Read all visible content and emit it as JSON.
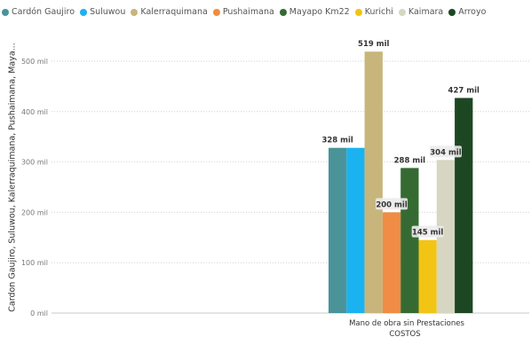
{
  "chart_data": {
    "type": "bar",
    "categories": [
      "Mano de obra sin Prestaciones"
    ],
    "xlabel": "COSTOS",
    "ylabel": "Cardon Gaujiro, Suluwou, Kalerraquimana, Pushaimana, Maya...",
    "ylim": [
      0,
      560
    ],
    "yticks": [
      0,
      100,
      200,
      300,
      400,
      500
    ],
    "ytick_labels": [
      "0 mil",
      "100 mil",
      "200 mil",
      "300 mil",
      "400 mil",
      "500 mil"
    ],
    "legend_position": "top",
    "grid": true,
    "series": [
      {
        "name": "Cardón Gaujiro",
        "values": [
          328
        ],
        "label": "328 mil",
        "color": "#4a9499"
      },
      {
        "name": "Suluwou",
        "values": [
          328
        ],
        "label": "",
        "color": "#1ab2f0"
      },
      {
        "name": "Kalerraquimana",
        "values": [
          519
        ],
        "label": "519 mil",
        "color": "#c8b57b"
      },
      {
        "name": "Pushaimana",
        "values": [
          200
        ],
        "label": "200 mil",
        "color": "#f08c44"
      },
      {
        "name": "Mayapo Km22",
        "values": [
          288
        ],
        "label": "288 mil",
        "color": "#356b33"
      },
      {
        "name": "Kurichi",
        "values": [
          145
        ],
        "label": "145 mil",
        "color": "#f2c414"
      },
      {
        "name": "Kaimara",
        "values": [
          304
        ],
        "label": "304 mil",
        "color": "#d6d6c2"
      },
      {
        "name": "Arroyo",
        "values": [
          427
        ],
        "label": "427 mil",
        "color": "#1d4723"
      }
    ]
  }
}
